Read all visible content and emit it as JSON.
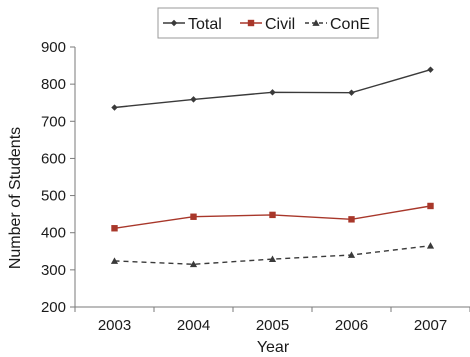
{
  "chart_data": {
    "type": "line",
    "title": "",
    "xlabel": "Year",
    "ylabel": "Number of Students",
    "categories": [
      "2003",
      "2004",
      "2005",
      "2006",
      "2007"
    ],
    "ylim": [
      200,
      900
    ],
    "yticks": [
      200,
      300,
      400,
      500,
      600,
      700,
      800,
      900
    ],
    "grid": false,
    "legend_position": "top",
    "series": [
      {
        "name": "Total",
        "values": [
          737,
          759,
          778,
          777,
          839
        ],
        "color": "#3a3a3a",
        "dash": "solid",
        "marker": "diamond"
      },
      {
        "name": "Civil",
        "values": [
          412,
          443,
          448,
          436,
          472
        ],
        "color": "#a8372a",
        "dash": "solid",
        "marker": "square"
      },
      {
        "name": "ConE",
        "values": [
          324,
          315,
          329,
          340,
          365
        ],
        "color": "#3a3a3a",
        "dash": "dashed",
        "marker": "triangle"
      }
    ]
  }
}
